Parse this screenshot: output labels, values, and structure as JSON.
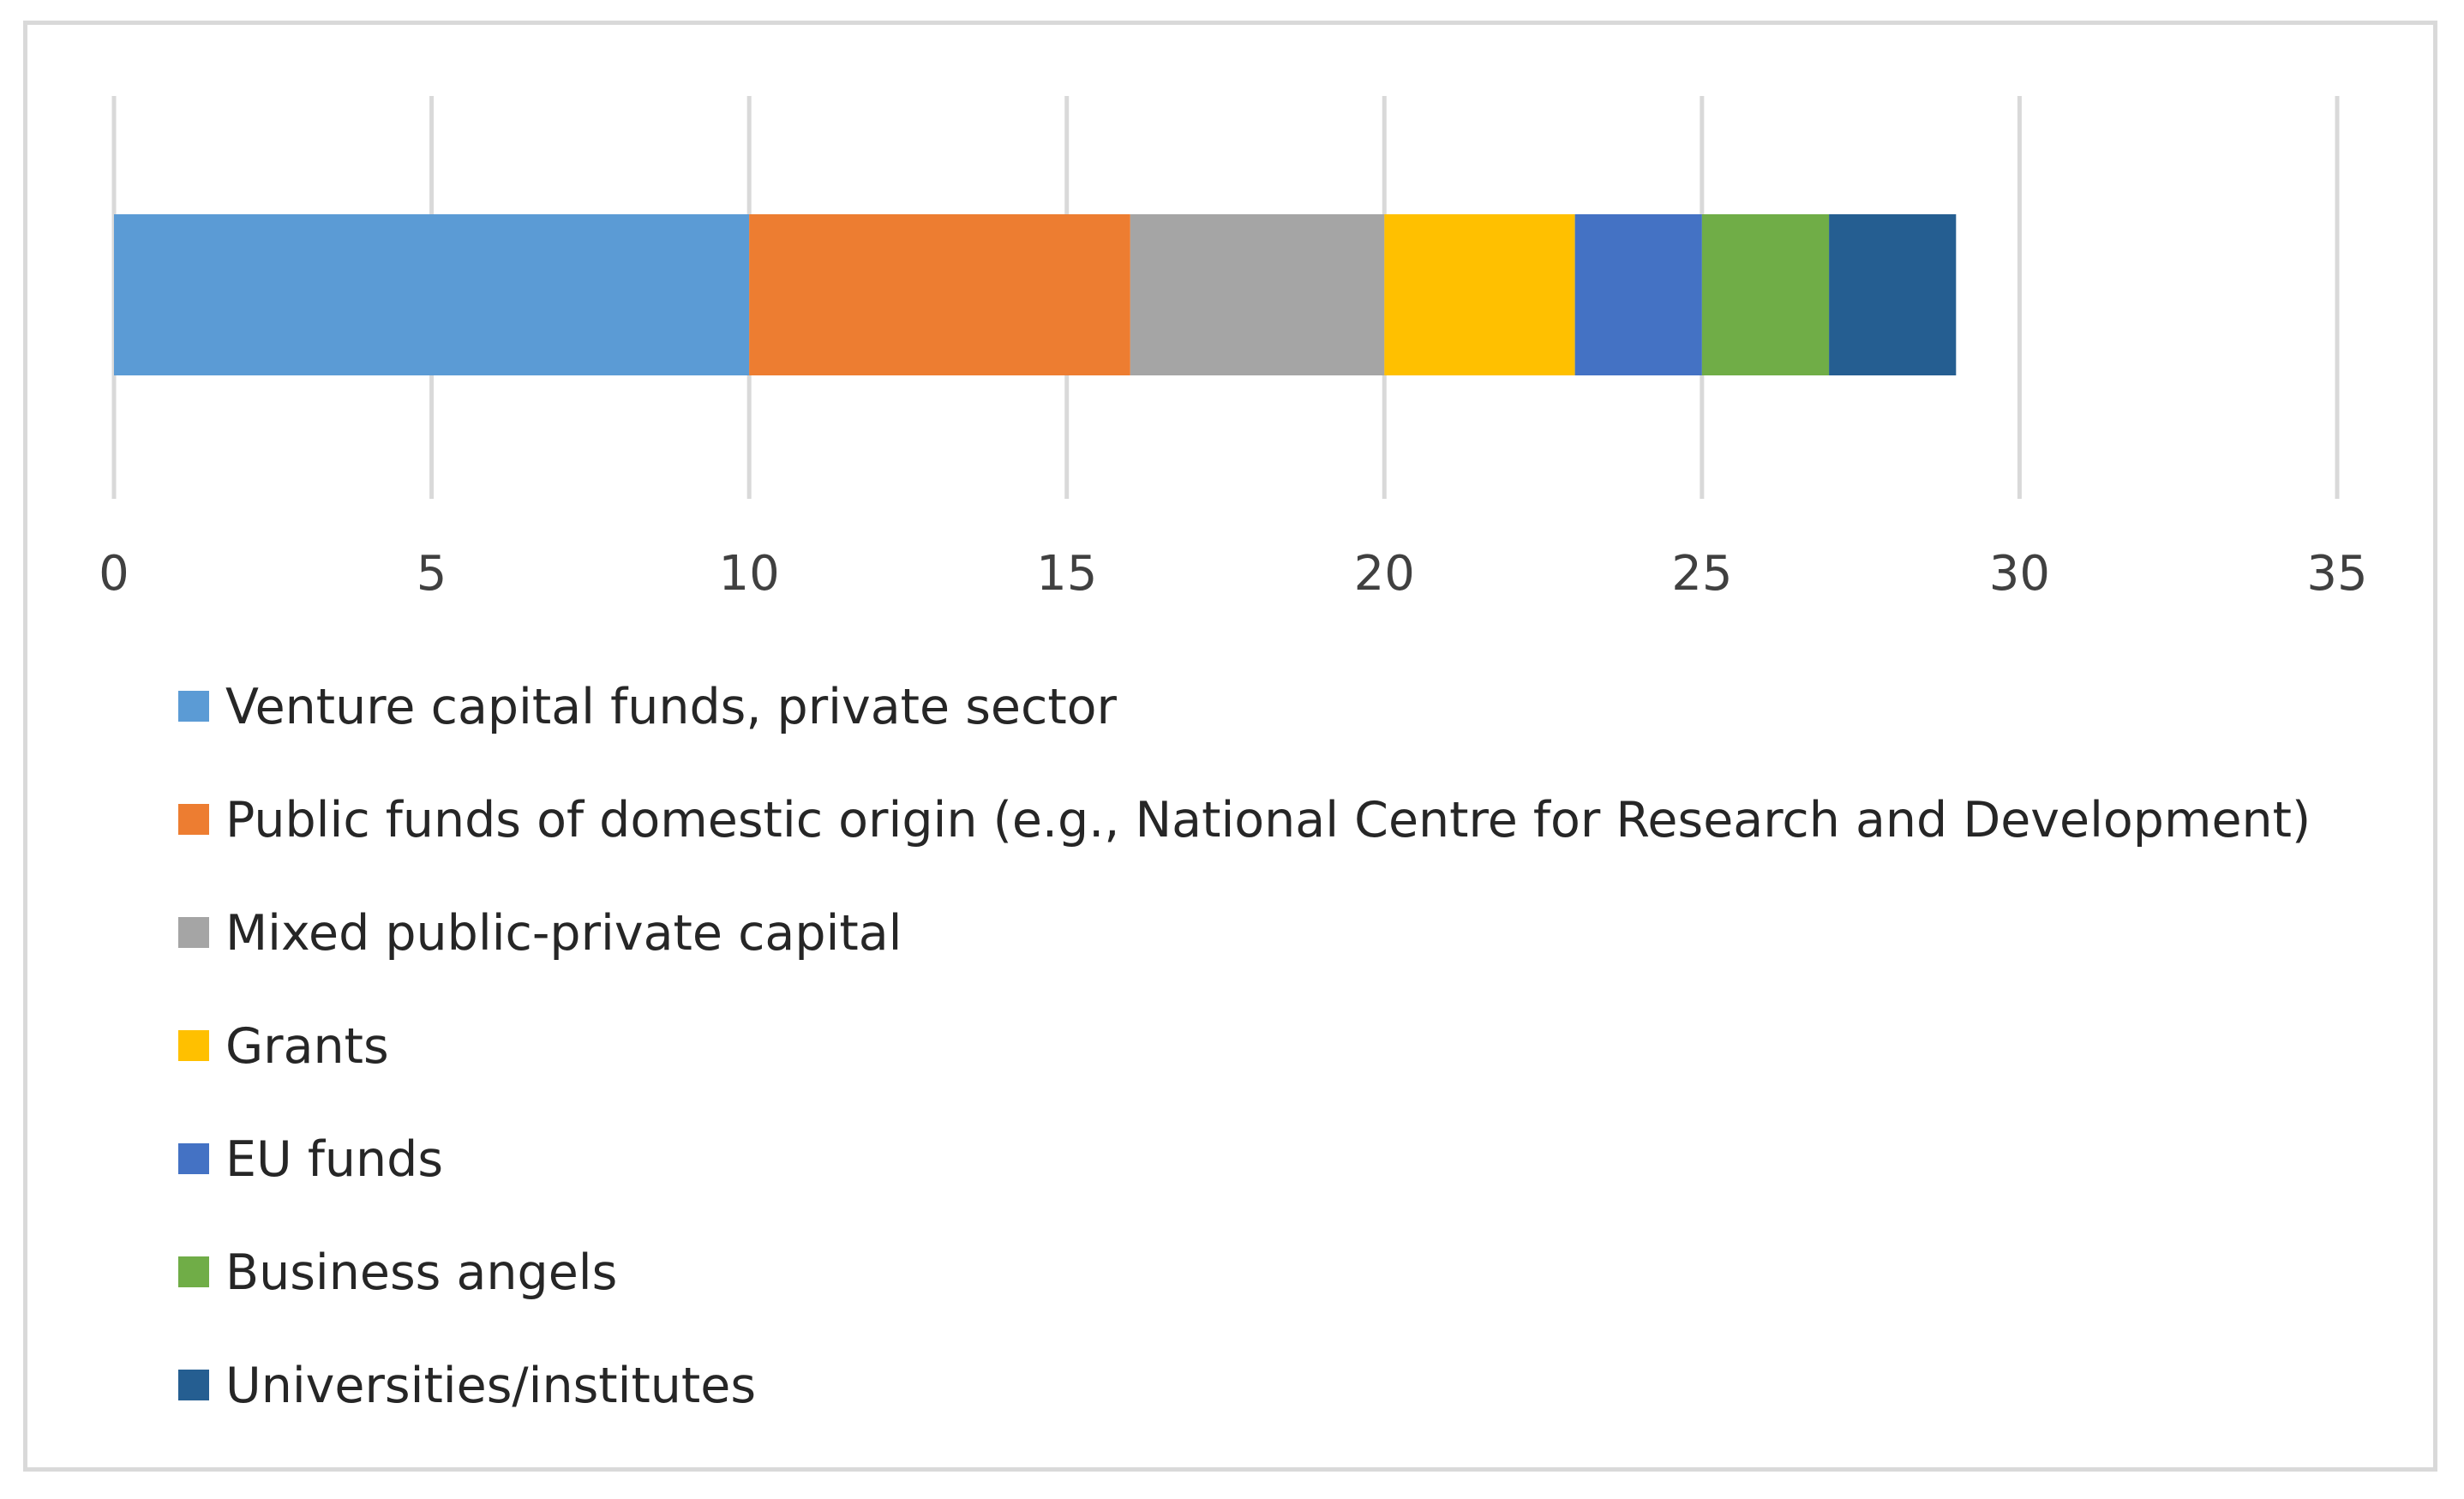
{
  "chart_data": {
    "type": "bar",
    "orientation": "horizontal",
    "stacked": true,
    "title": "",
    "xlabel": "",
    "ylabel": "",
    "categories": [
      ""
    ],
    "xlim": [
      0,
      35
    ],
    "x_ticks": [
      0,
      5,
      10,
      15,
      20,
      25,
      30,
      35
    ],
    "grid": "vertical",
    "legend_position": "bottom-left",
    "series": [
      {
        "name": "Venture capital funds, private sector",
        "values": [
          10
        ],
        "color": "#5B9BD5"
      },
      {
        "name": "Public funds of domestic origin (e.g., National Centre for Research and Development)",
        "values": [
          6
        ],
        "color": "#ED7D31"
      },
      {
        "name": "Mixed public-private capital",
        "values": [
          4
        ],
        "color": "#A5A5A5"
      },
      {
        "name": "Grants",
        "values": [
          3
        ],
        "color": "#FFC000"
      },
      {
        "name": "EU funds",
        "values": [
          2
        ],
        "color": "#4472C4"
      },
      {
        "name": "Business angels",
        "values": [
          2
        ],
        "color": "#70AD47"
      },
      {
        "name": "Universities/institutes",
        "values": [
          2
        ],
        "color": "#255E91"
      }
    ]
  }
}
